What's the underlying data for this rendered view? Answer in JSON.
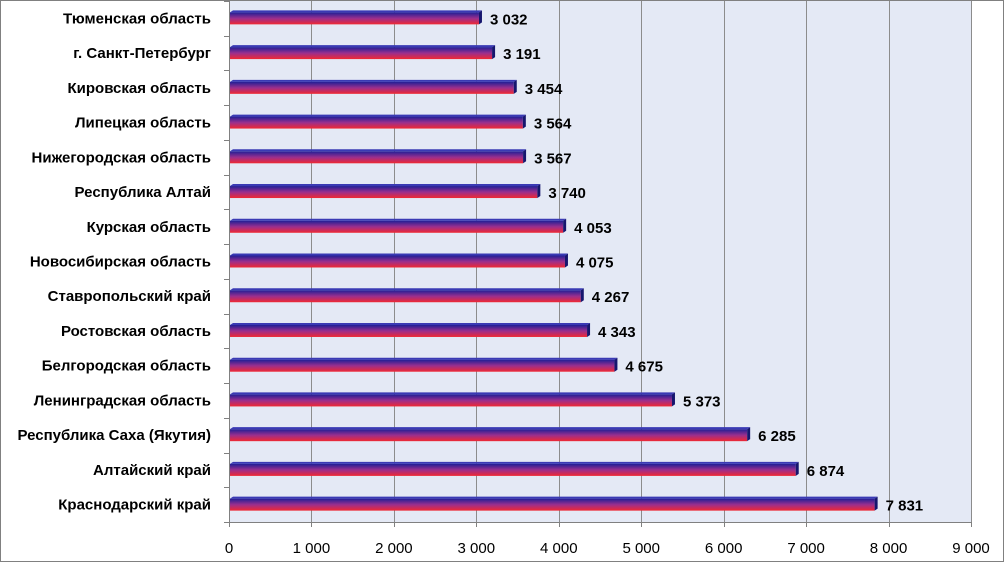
{
  "chart_data": {
    "type": "bar",
    "orientation": "horizontal",
    "categories": [
      "Тюменская область",
      "г. Санкт-Петербург",
      "Кировская область",
      "Липецкая область",
      "Нижегородская область",
      "Республика Алтай",
      "Курская область",
      "Новосибирская область",
      "Ставропольский край",
      "Ростовская  область",
      "Белгородская область",
      "Ленинградская область",
      "Республика Саха (Якутия)",
      "Алтайский край",
      "Краснодарский край"
    ],
    "values": [
      3032,
      3191,
      3454,
      3564,
      3567,
      3740,
      4053,
      4075,
      4267,
      4343,
      4675,
      5373,
      6285,
      6874,
      7831
    ],
    "data_labels": [
      "3 032",
      "3 191",
      "3 454",
      "3 564",
      "3 567",
      "3 740",
      "4 053",
      "4 075",
      "4 267",
      "4 343",
      "4 675",
      "5 373",
      "6 285",
      "6 874",
      "7 831"
    ],
    "xlim": [
      0,
      9000
    ],
    "x_ticks": [
      0,
      1000,
      2000,
      3000,
      4000,
      5000,
      6000,
      7000,
      8000,
      9000
    ],
    "x_tick_labels": [
      "0",
      "1 000",
      "2 000",
      "3 000",
      "4 000",
      "5 000",
      "6 000",
      "7 000",
      "8 000",
      "9 000"
    ],
    "grid": "vertical",
    "title": "",
    "xlabel": "",
    "ylabel": "",
    "colors": {
      "plot_background": "#e4e9f5",
      "gridline": "#8c8c8c",
      "bar_top": "#1f1f96",
      "bar_middle": "#9a2f8e",
      "bar_bottom": "#f02832",
      "bar_side": "#16166e"
    }
  }
}
